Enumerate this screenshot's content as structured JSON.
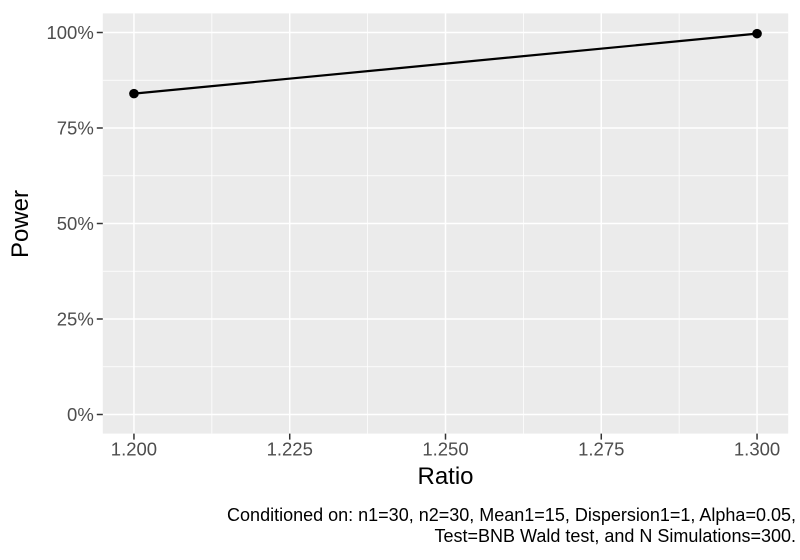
{
  "chart_data": {
    "type": "line",
    "title": "",
    "xlabel": "Ratio",
    "ylabel": "Power",
    "x": [
      1.2,
      1.3
    ],
    "series": [
      {
        "name": "Power",
        "values": [
          0.84,
          0.997
        ]
      }
    ],
    "x_ticks": [
      {
        "value": 1.2,
        "label": "1.200"
      },
      {
        "value": 1.225,
        "label": "1.225"
      },
      {
        "value": 1.25,
        "label": "1.250"
      },
      {
        "value": 1.275,
        "label": "1.275"
      },
      {
        "value": 1.3,
        "label": "1.300"
      }
    ],
    "y_ticks": [
      {
        "value": 0,
        "label": "0%"
      },
      {
        "value": 0.25,
        "label": "25%"
      },
      {
        "value": 0.5,
        "label": "50%"
      },
      {
        "value": 0.75,
        "label": "75%"
      },
      {
        "value": 1,
        "label": "100%"
      }
    ],
    "x_minor_ticks": [
      1.2125,
      1.2375,
      1.2625,
      1.2875
    ],
    "y_minor_ticks": [
      0.125,
      0.375,
      0.625,
      0.875
    ],
    "xlim": [
      1.195,
      1.305
    ],
    "ylim": [
      -0.05,
      1.05
    ],
    "grid": true,
    "legend": "none",
    "caption_lines": [
      "Conditioned on: n1=30, n2=30, Mean1=15, Dispersion1=1, Alpha=0.05,",
      "Test=BNB Wald test, and N Simulations=300."
    ],
    "colors": {
      "panel_bg": "#EBEBEB",
      "grid": "#FFFFFF",
      "tick_text": "#4D4D4D",
      "tick_mark": "#333333",
      "axis_text": "#000000",
      "line": "#000000",
      "point": "#000000"
    }
  }
}
